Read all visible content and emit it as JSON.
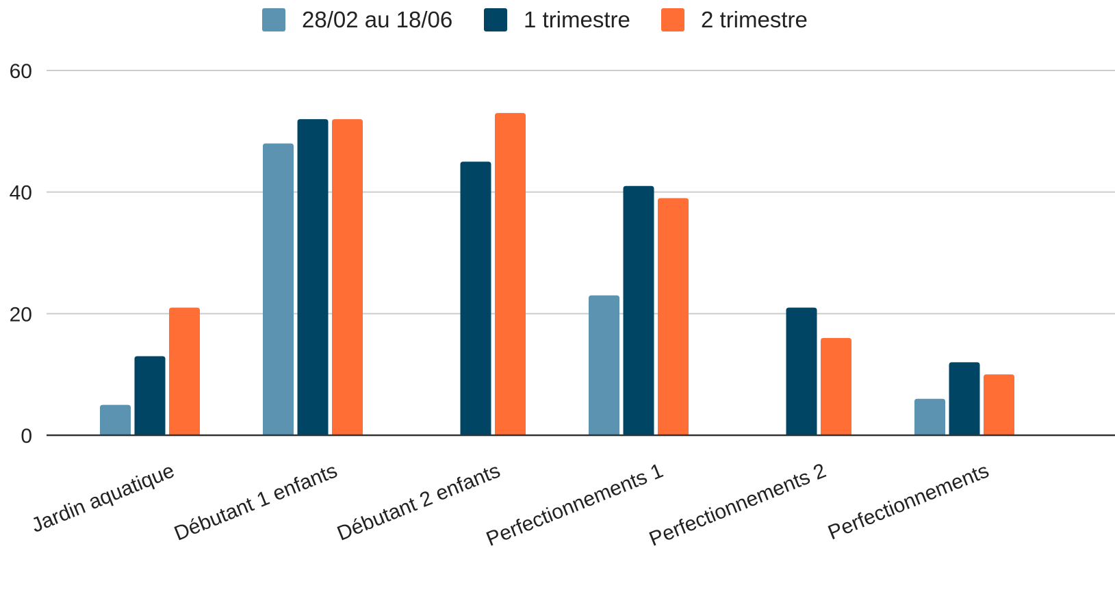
{
  "chart_data": {
    "type": "bar",
    "title": "",
    "xlabel": "",
    "ylabel": "",
    "ylim": [
      0,
      63
    ],
    "yticks": [
      0,
      20,
      40,
      60
    ],
    "grid": true,
    "legend_position": "top-center",
    "categories": [
      "Jardin aquatique",
      "Débutant 1 enfants",
      "Débutant 2 enfants",
      "Perfectionnements 1",
      "Perfectionnements 2",
      "Perfectionnements"
    ],
    "series": [
      {
        "name": "28/02 au 18/06",
        "color": "#5b93b1",
        "values": [
          5,
          48,
          null,
          23,
          null,
          6
        ]
      },
      {
        "name": "1 trimestre",
        "color": "#004664",
        "values": [
          13,
          52,
          45,
          41,
          21,
          12
        ]
      },
      {
        "name": "2 trimestre",
        "color": "#ff6f35",
        "values": [
          21,
          52,
          53,
          39,
          16,
          10
        ]
      }
    ]
  }
}
